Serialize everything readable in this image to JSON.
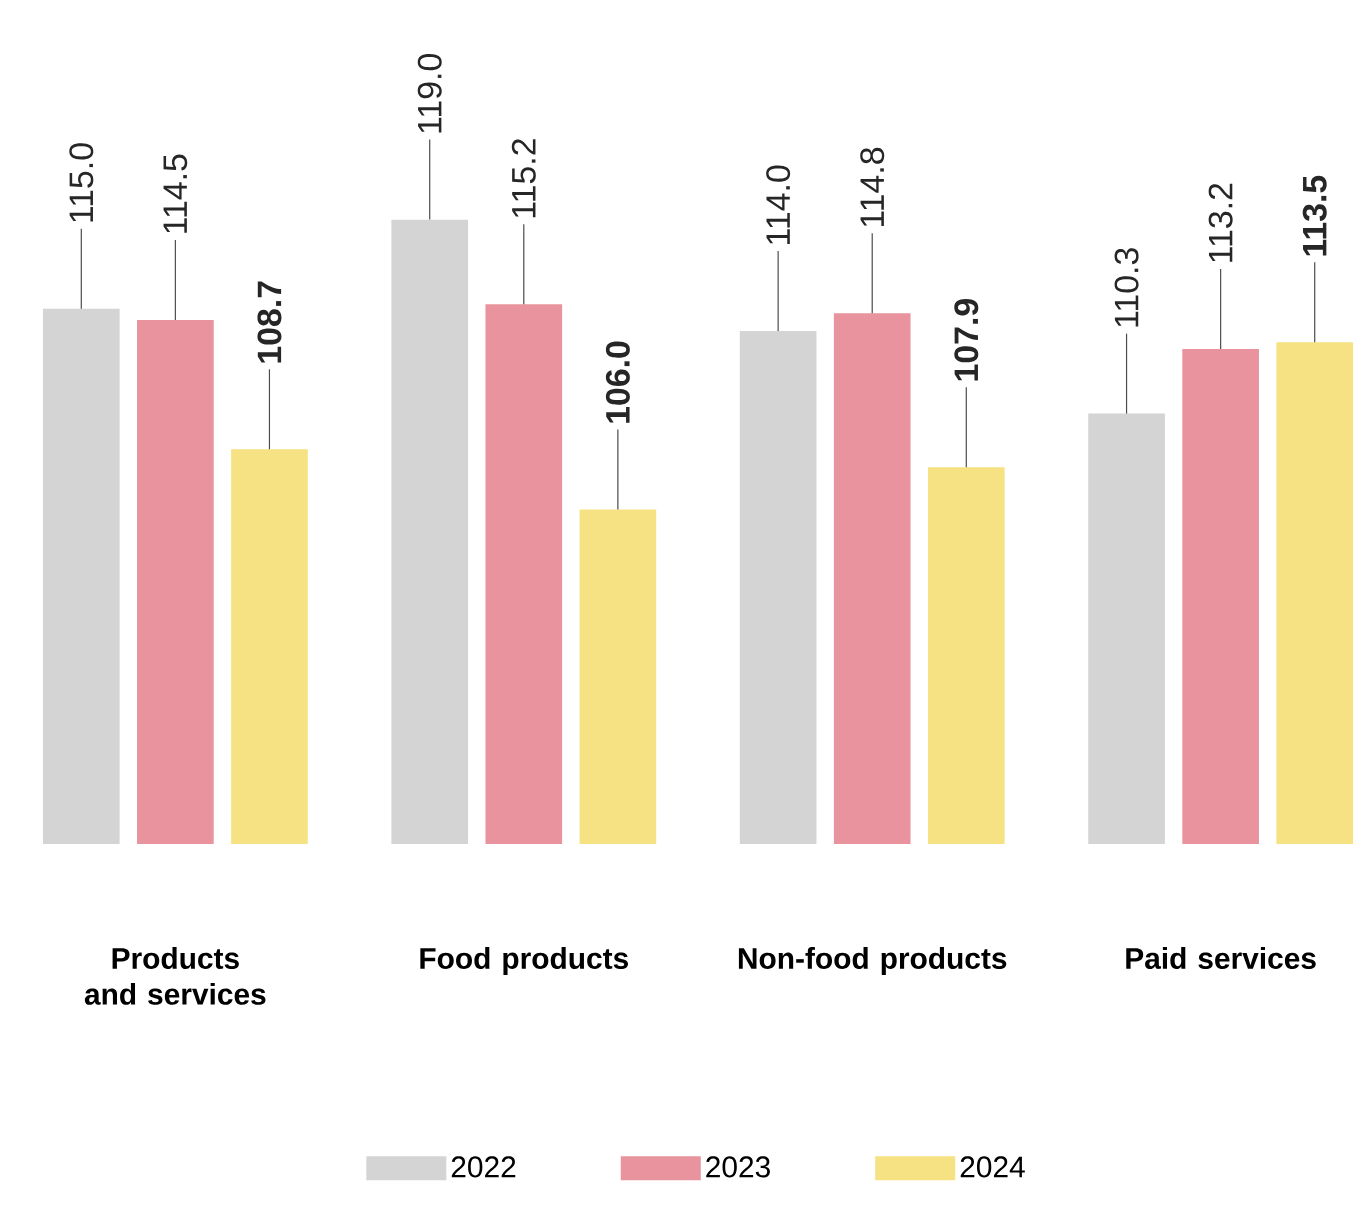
{
  "chart_data": {
    "type": "bar",
    "categories": [
      "Products and services",
      "Food products",
      "Non-food products",
      "Paid services"
    ],
    "series": [
      {
        "name": "2022",
        "color": "#d4d4d4",
        "values": [
          115.0,
          119.0,
          114.0,
          110.3
        ],
        "value_labels": [
          "115.0",
          "119.0",
          "114.0",
          "110.3"
        ]
      },
      {
        "name": "2023",
        "color": "#e8939d",
        "values": [
          114.5,
          115.2,
          114.8,
          113.2
        ],
        "value_labels": [
          "114.5",
          "115.2",
          "114.8",
          "113.2"
        ]
      },
      {
        "name": "2024",
        "color": "#f6e282",
        "values": [
          108.7,
          106.0,
          107.9,
          113.5
        ],
        "value_labels": [
          "108.7",
          "106.0",
          "107.9",
          "113.5"
        ]
      }
    ],
    "ylim": [
      91,
      119
    ],
    "legend": "bottom",
    "tick_labels": "x"
  }
}
